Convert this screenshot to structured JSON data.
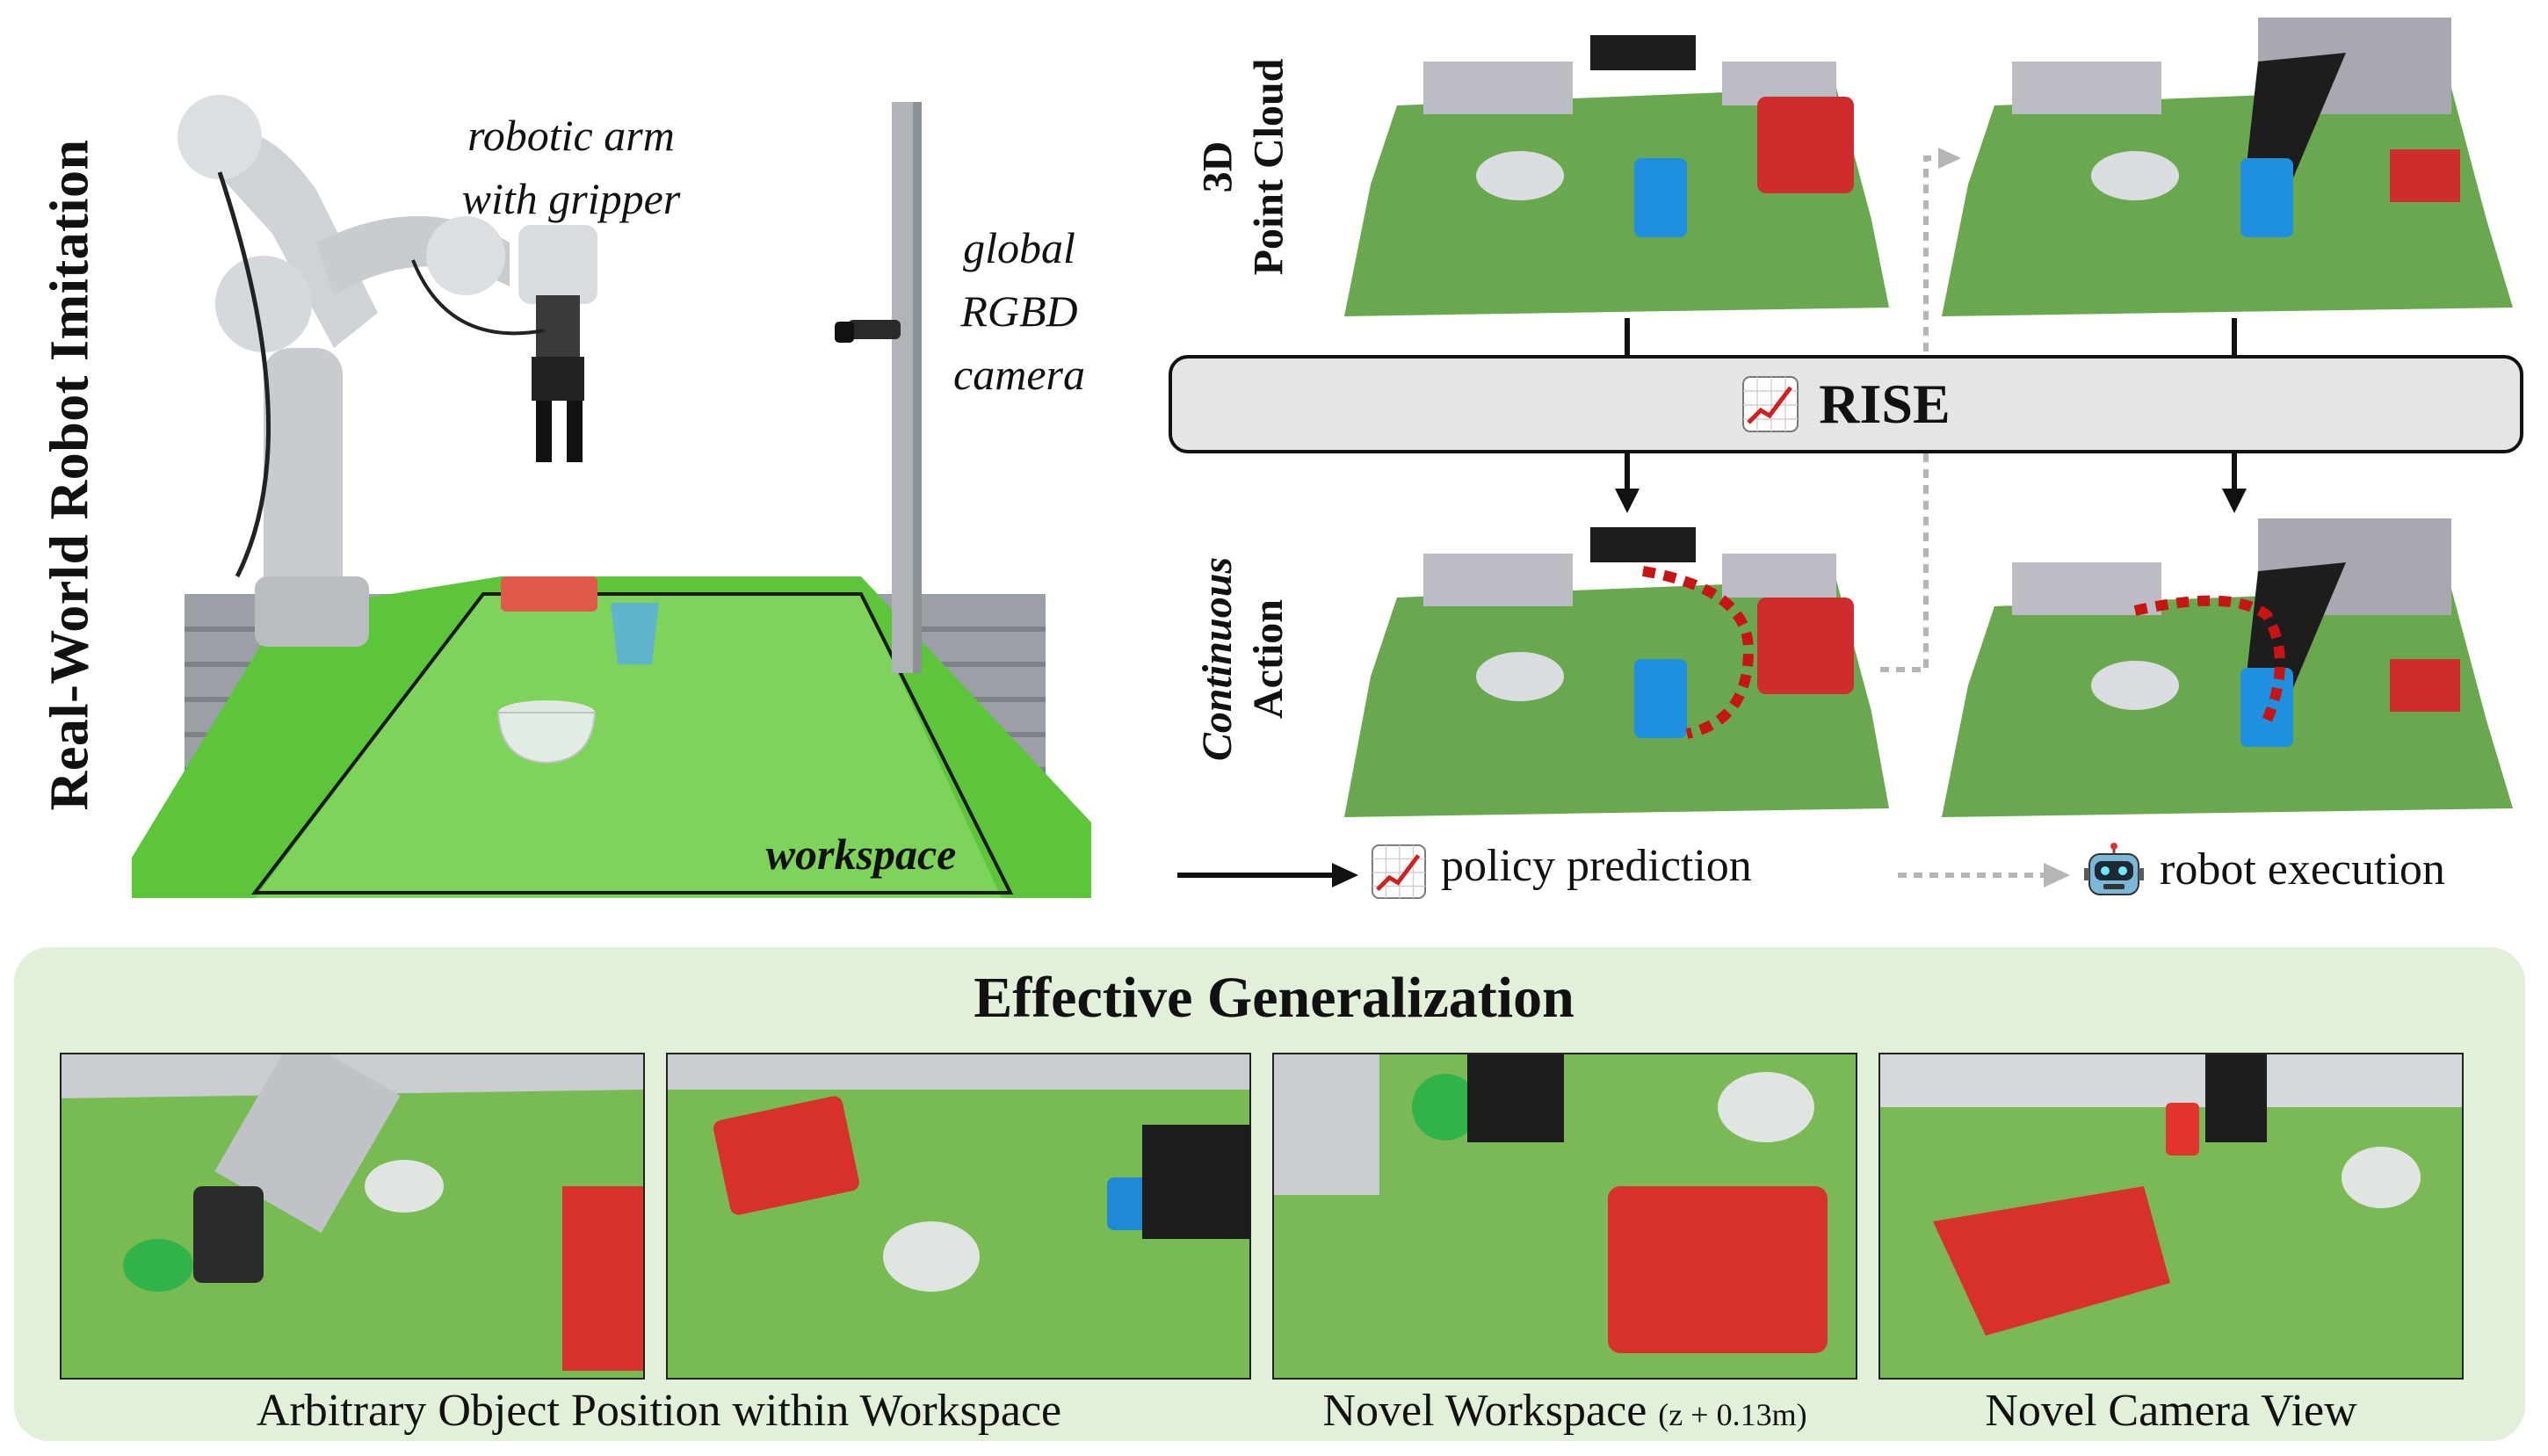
{
  "side_title": "Real-World Robot Imitation",
  "setup_photo": {
    "label_arm_line1": "robotic arm",
    "label_arm_line2": "with gripper",
    "label_cam_line1": "global",
    "label_cam_line2": "RGBD",
    "label_cam_line3": "camera",
    "label_workspace": "workspace"
  },
  "pipeline": {
    "row1_label_line1": "3D",
    "row1_label_line2": "Point Cloud",
    "row2_label_line1": "Continuous",
    "row2_label_line2": "Action",
    "model_name": "RISE",
    "legend_policy": "policy prediction",
    "legend_robot": "robot execution"
  },
  "generalization": {
    "title": "Effective Generalization",
    "caption_1": "Arbitrary Object Position within Workspace",
    "caption_2_main": "Novel Workspace",
    "caption_2_note": "(z + 0.13m)",
    "caption_3": "Novel Camera View"
  },
  "colors": {
    "table_green": "#5cc53a",
    "cloth_green": "#72bd4b",
    "basket_red": "#d7302a",
    "cup_blue": "#1e8ad6",
    "trajectory_red": "#c81414",
    "panel_bg": "#e2efd9",
    "rise_box": "#e5e5e5"
  }
}
